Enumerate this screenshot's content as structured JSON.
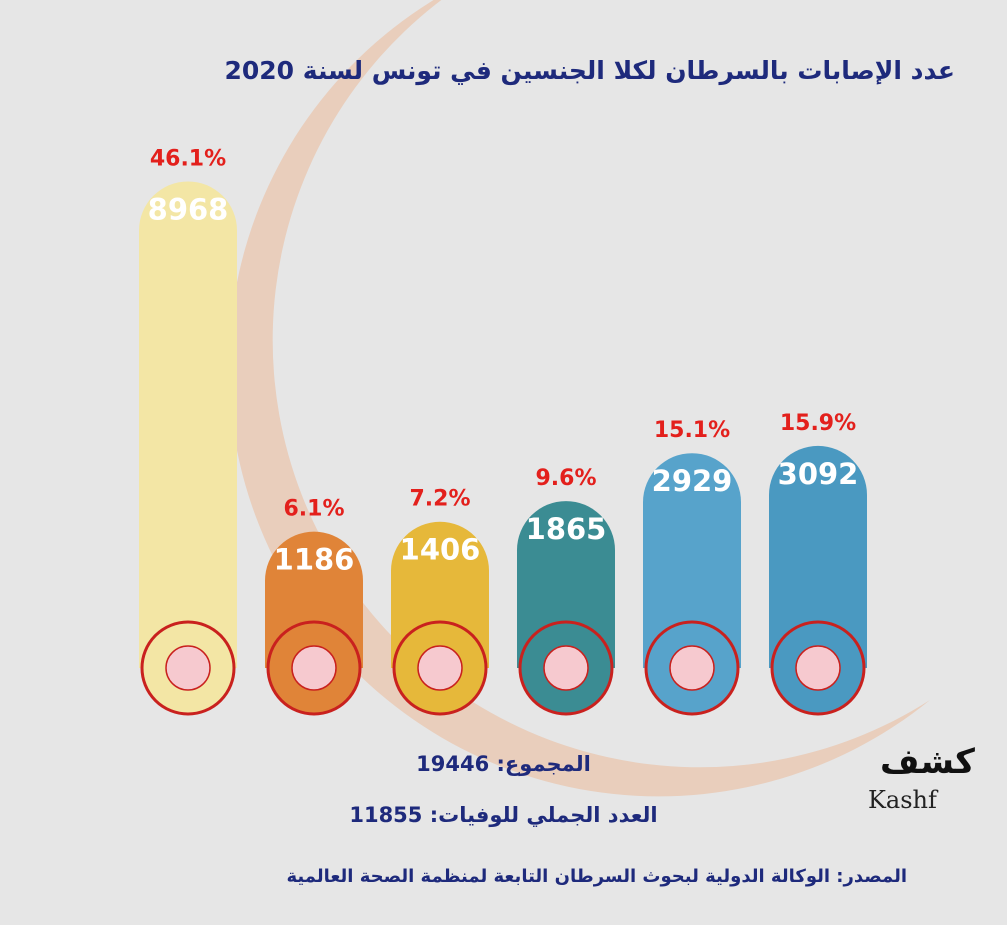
{
  "chart_data": {
    "type": "bar",
    "title": "عدد الإصابات بالسرطان لكلا الجنسين في تونس لسنة 2020",
    "categories": [
      null,
      null,
      null,
      null,
      null,
      null
    ],
    "values": [
      8968,
      1186,
      1406,
      1865,
      2929,
      3092
    ],
    "shares": [
      46.1,
      6.1,
      7.2,
      9.6,
      15.1,
      15.9
    ],
    "share_labels": [
      "46.1%",
      "6.1%",
      "7.2%",
      "9.6%",
      "15.1%",
      "15.9%"
    ],
    "colors": [
      "#f3e6a5",
      "#e08438",
      "#e6b83a",
      "#3b8c93",
      "#57a3cb",
      "#4a99c1"
    ],
    "ylim": [
      -3000,
      9000
    ],
    "total": "المجموع: 19446",
    "deaths": "العدد الجملي للوفيات: 11855",
    "source": "المصدر: الوكالة الدولية لبحوث السرطان التابعة لمنظمة الصحة العالمية",
    "logo": {
      "arabic": "كشف",
      "latin": "Kashf"
    }
  }
}
